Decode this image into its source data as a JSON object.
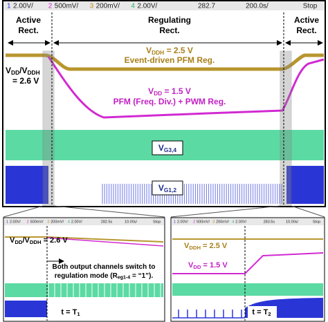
{
  "top": {
    "header": {
      "channels": [
        {
          "num": "1",
          "scale": "2.00V/"
        },
        {
          "num": "2",
          "scale": "500mV/"
        },
        {
          "num": "3",
          "scale": "200mV/"
        },
        {
          "num": "4",
          "scale": "2.00V/"
        }
      ],
      "time_pos": "282.7",
      "time_scale": "200.0s/",
      "status": "Stop"
    },
    "phases": [
      [
        "Active",
        "Rect."
      ],
      [
        "Regulating",
        "Rect."
      ],
      [
        "Active",
        "Rect."
      ]
    ],
    "vddh_label": [
      "V",
      "DDH",
      " = 2.5 V"
    ],
    "vddh_desc": "Event-driven PFM Reg.",
    "vdd_vddh_label": [
      [
        "V",
        "DD",
        "/V",
        "DDH"
      ],
      [
        "= 2.6 V"
      ]
    ],
    "vdd_label": [
      "V",
      "DD",
      " = 1.5 V"
    ],
    "vdd_desc": "PFM (Freq. Div.) + PWM Reg.",
    "vg34_label": [
      "V",
      "G3,4"
    ],
    "vg12_label": [
      "V",
      "G1,2"
    ]
  },
  "zoom_left": {
    "header": {
      "channels": [
        {
          "num": "1",
          "scale": "2.00V/"
        },
        {
          "num": "2",
          "scale": "500mV/"
        },
        {
          "num": "3",
          "scale": "200mV/"
        },
        {
          "num": "4",
          "scale": "2.00V/"
        }
      ],
      "time_pos": "282.5s",
      "time_scale": "10.00s/",
      "status": "Stop"
    },
    "vdd_vddh_label": [
      "V",
      "DD",
      "/V",
      "DDH",
      " = 2.6 V"
    ],
    "note": [
      [
        "Both output channels switch to"
      ],
      [
        "regulation mode (R",
        "eg1-4",
        " = “1”)."
      ]
    ],
    "time_label": [
      "t = T",
      "1"
    ]
  },
  "zoom_right": {
    "header": {
      "channels": [
        {
          "num": "1",
          "scale": "2.00V/"
        },
        {
          "num": "2",
          "scale": "500mV/"
        },
        {
          "num": "3",
          "scale": "200mV/"
        },
        {
          "num": "4",
          "scale": "2.00V/"
        }
      ],
      "time_pos": "283.5s",
      "time_scale": "10.00s/",
      "status": "Stop"
    },
    "vddh_label": [
      "V",
      "DDH",
      " = 2.5 V"
    ],
    "vdd_label": [
      "V",
      "DD",
      " = 1.5 V"
    ],
    "time_label": [
      "t = T",
      "2"
    ]
  }
}
